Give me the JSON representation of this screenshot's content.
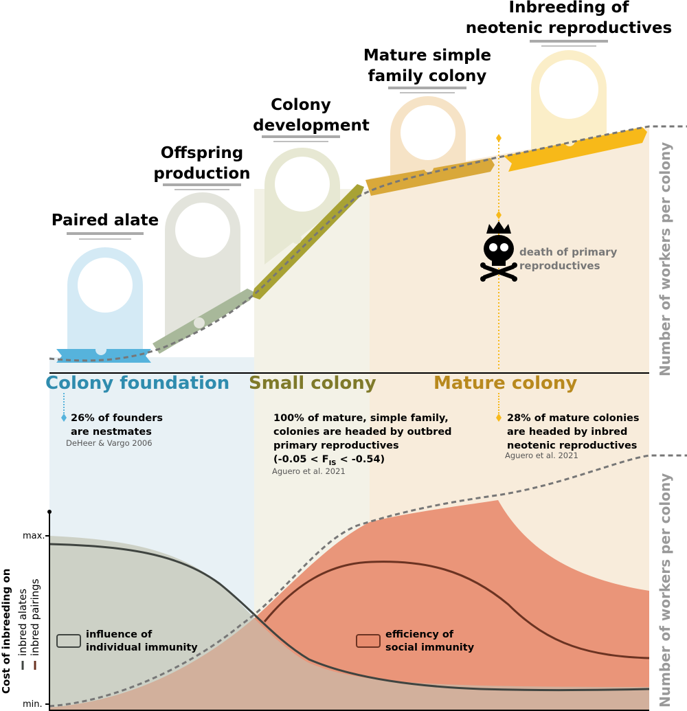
{
  "stages": [
    {
      "line1": "Paired alate",
      "line2": ""
    },
    {
      "line1": "Offspring",
      "line2": "production"
    },
    {
      "line1": "Colony",
      "line2": "development"
    },
    {
      "line1": "Mature simple",
      "line2": "family colony"
    },
    {
      "line1": "Inbreeding of",
      "line2": "neotenic reproductives"
    }
  ],
  "phases": {
    "foundation": "Colony foundation",
    "small": "Small colony",
    "mature": "Mature colony"
  },
  "phase_colors": {
    "foundation": "#2f8cae",
    "small": "#7f7a2a",
    "mature": "#b8891e"
  },
  "axis_right_label": "Number of workers per colony",
  "death_note": {
    "line1": "death of primary",
    "line2": "reproductives",
    "icon": "skull-crown-icon"
  },
  "facts": [
    {
      "lines": [
        "26% of founders",
        "are nestmates"
      ],
      "source": "DeHeer & Vargo 2006"
    },
    {
      "lines": [
        "100% of mature, simple family,",
        "colonies are headed by outbred",
        "primary reproductives"
      ],
      "formula_prefix": "(-0.05 < F",
      "formula_sub": "IS",
      "formula_suffix": " < -0.54)",
      "source": "Aguero et al. 2021"
    },
    {
      "lines": [
        "28% of mature colonies",
        "are headed by inbred",
        "neotenic reproductives"
      ],
      "source": "Aguero et al. 2021"
    }
  ],
  "cost_chart": {
    "ylabel": "Cost of inbreeding on",
    "y_max_label": "max.",
    "y_min_label": "min.",
    "legend_alates": "inbred alates",
    "legend_pairings": "inbred pairings",
    "legend_individual_1": "influence of",
    "legend_individual_2": "individual immunity",
    "legend_social_1": "efficiency of",
    "legend_social_2": "social immunity"
  }
}
